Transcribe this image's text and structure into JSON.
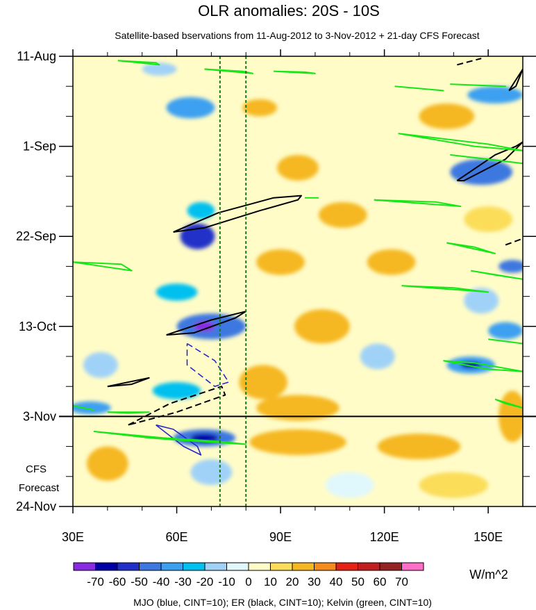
{
  "chart_data": {
    "type": "heatmap",
    "title": "OLR anomalies: 20S - 10S",
    "subtitle": "Satellite-based bservations from 11-Aug-2012 to 3-Nov-2012 + 21-day CFS Forecast",
    "x_axis": {
      "range": [
        30,
        160
      ],
      "ticks": [
        {
          "value": 30,
          "label": "30E"
        },
        {
          "value": 60,
          "label": "60E"
        },
        {
          "value": 90,
          "label": "90E"
        },
        {
          "value": 120,
          "label": "120E"
        },
        {
          "value": 150,
          "label": "150E"
        }
      ],
      "minor_step": 10
    },
    "y_axis": {
      "range_days": [
        0,
        105
      ],
      "start_date": "11-Aug-2012",
      "ticks": [
        {
          "day": 0,
          "label": "11-Aug"
        },
        {
          "day": 21,
          "label": "1-Sep"
        },
        {
          "day": 42,
          "label": "22-Sep"
        },
        {
          "day": 63,
          "label": "13-Oct"
        },
        {
          "day": 84,
          "label": "3-Nov"
        },
        {
          "day": 105,
          "label": "24-Nov"
        }
      ],
      "minor_step_days": 7
    },
    "forecast": {
      "start_day": 84,
      "label_line1": "CFS",
      "label_line2": "Forecast"
    },
    "reference_lines_lon": [
      72.5,
      80
    ],
    "colorbar": {
      "levels": [
        -70,
        -60,
        -50,
        -40,
        -30,
        -20,
        -10,
        0,
        10,
        20,
        30,
        40,
        50,
        60,
        70
      ],
      "colors": [
        "#8a2be2",
        "#0000a8",
        "#2030c8",
        "#3c78e0",
        "#3ca0f0",
        "#00c0f0",
        "#a0d2f8",
        "#e0f8fc",
        "#fffcc8",
        "#fbdd5a",
        "#f5b823",
        "#f58c1e",
        "#e62214",
        "#c31e1e",
        "#962323",
        "#ff6ec8"
      ],
      "units": "W/m^2"
    },
    "blobs": [
      {
        "lon": 55,
        "day": 3,
        "rl": 5,
        "rd": 1.5,
        "v": -15
      },
      {
        "lon": 64,
        "day": 12,
        "rl": 7,
        "rd": 2.5,
        "v": -35
      },
      {
        "lon": 84,
        "day": 12,
        "rl": 5,
        "rd": 2,
        "v": 22
      },
      {
        "lon": 138,
        "day": 14,
        "rl": 8,
        "rd": 3,
        "v": 20
      },
      {
        "lon": 152,
        "day": 9,
        "rl": 8,
        "rd": 2,
        "v": -40
      },
      {
        "lon": 148,
        "day": 27,
        "rl": 9,
        "rd": 3,
        "v": -45
      },
      {
        "lon": 95,
        "day": 26,
        "rl": 6,
        "rd": 3,
        "v": 20
      },
      {
        "lon": 67,
        "day": 36,
        "rl": 4,
        "rd": 2,
        "v": -25
      },
      {
        "lon": 66,
        "day": 42,
        "rl": 5,
        "rd": 3,
        "v": -55
      },
      {
        "lon": 108,
        "day": 37,
        "rl": 7,
        "rd": 3,
        "v": 22
      },
      {
        "lon": 150,
        "day": 38,
        "rl": 7,
        "rd": 3,
        "v": 18
      },
      {
        "lon": 90,
        "day": 48,
        "rl": 7,
        "rd": 3,
        "v": 20
      },
      {
        "lon": 122,
        "day": 48,
        "rl": 7,
        "rd": 3,
        "v": 22
      },
      {
        "lon": 157,
        "day": 49,
        "rl": 4,
        "rd": 1.5,
        "v": -50
      },
      {
        "lon": 60,
        "day": 55,
        "rl": 6,
        "rd": 2,
        "v": -30
      },
      {
        "lon": 148,
        "day": 57,
        "rl": 5,
        "rd": 3,
        "v": -20
      },
      {
        "lon": 70,
        "day": 63,
        "rl": 10,
        "rd": 3,
        "v": -50
      },
      {
        "lon": 68,
        "day": 63,
        "rl": 3,
        "rd": 1.2,
        "v": -72
      },
      {
        "lon": 102,
        "day": 63,
        "rl": 8,
        "rd": 4,
        "v": 20
      },
      {
        "lon": 155,
        "day": 64,
        "rl": 5,
        "rd": 2,
        "v": -40
      },
      {
        "lon": 118,
        "day": 70,
        "rl": 5,
        "rd": 3,
        "v": -15
      },
      {
        "lon": 145,
        "day": 72,
        "rl": 7,
        "rd": 2,
        "v": -40
      },
      {
        "lon": 145,
        "day": 72,
        "rl": 3,
        "rd": 0.8,
        "v": -70
      },
      {
        "lon": 85,
        "day": 76,
        "rl": 7,
        "rd": 4,
        "v": 25
      },
      {
        "lon": 60,
        "day": 78,
        "rl": 7,
        "rd": 2,
        "v": -30
      },
      {
        "lon": 95,
        "day": 82,
        "rl": 12,
        "rd": 3,
        "v": 20
      },
      {
        "lon": 35,
        "day": 82,
        "rl": 6,
        "rd": 1.5,
        "v": -40
      },
      {
        "lon": 157,
        "day": 84,
        "rl": 4,
        "rd": 6,
        "v": 22
      },
      {
        "lon": 38,
        "day": 72,
        "rl": 5,
        "rd": 3,
        "v": -15
      },
      {
        "lon": 68,
        "day": 89,
        "rl": 9,
        "rd": 2,
        "v": -50
      },
      {
        "lon": 68,
        "day": 89,
        "rl": 4,
        "rd": 1,
        "v": -70
      },
      {
        "lon": 95,
        "day": 90,
        "rl": 14,
        "rd": 3,
        "v": 25
      },
      {
        "lon": 130,
        "day": 91,
        "rl": 12,
        "rd": 3,
        "v": 20
      },
      {
        "lon": 40,
        "day": 95,
        "rl": 6,
        "rd": 4,
        "v": 20
      },
      {
        "lon": 70,
        "day": 97,
        "rl": 6,
        "rd": 3,
        "v": -15
      },
      {
        "lon": 140,
        "day": 100,
        "rl": 10,
        "rd": 3,
        "v": 18
      },
      {
        "lon": 110,
        "day": 100,
        "rl": 7,
        "rd": 3,
        "v": -10
      }
    ],
    "contours": {
      "er_black_solid": [
        [
          [
            59,
            41
          ],
          [
            72,
            36.5
          ],
          [
            88,
            33
          ],
          [
            96,
            32.5
          ],
          [
            95,
            33.5
          ],
          [
            84,
            36
          ],
          [
            68,
            40
          ],
          [
            59,
            41
          ]
        ],
        [
          [
            40,
            77
          ],
          [
            52,
            75
          ],
          [
            47,
            76.5
          ],
          [
            40,
            77
          ]
        ],
        [
          [
            57,
            65
          ],
          [
            70,
            61.5
          ],
          [
            80,
            59.5
          ],
          [
            77,
            61
          ],
          [
            65,
            64.5
          ],
          [
            57,
            65
          ]
        ],
        [
          [
            141,
            29
          ],
          [
            152,
            23
          ],
          [
            158,
            21
          ],
          [
            160,
            20
          ],
          [
            155,
            24
          ],
          [
            143,
            29
          ],
          [
            141,
            29
          ]
        ],
        [
          [
            156,
            8
          ],
          [
            160,
            3
          ],
          [
            158,
            7
          ],
          [
            156,
            8
          ]
        ]
      ],
      "er_black_dashed": [
        [
          [
            46,
            86
          ],
          [
            58,
            81
          ],
          [
            73,
            77
          ],
          [
            74,
            79
          ],
          [
            60,
            83
          ],
          [
            46,
            86
          ]
        ],
        [
          [
            141,
            2
          ],
          [
            148,
            0.5
          ]
        ],
        [
          [
            155,
            44
          ],
          [
            160,
            42.5
          ]
        ]
      ],
      "mjo_blue_solid": [
        [
          [
            54,
            86
          ],
          [
            62,
            91
          ],
          [
            67,
            93
          ],
          [
            66,
            91
          ],
          [
            59,
            87
          ],
          [
            54,
            86
          ]
        ]
      ],
      "mjo_blue_dashed": [
        [
          [
            63,
            67
          ],
          [
            71,
            71
          ],
          [
            75,
            76
          ],
          [
            71,
            77
          ],
          [
            63,
            72
          ],
          [
            63,
            67
          ]
        ]
      ],
      "kelvin_green": [
        [
          [
            30,
            48
          ],
          [
            47,
            50
          ],
          [
            44,
            48.5
          ],
          [
            30,
            48
          ]
        ],
        [
          [
            43,
            1
          ],
          [
            55,
            2
          ],
          [
            54,
            1.5
          ],
          [
            43,
            1
          ]
        ],
        [
          [
            68,
            3
          ],
          [
            82,
            4
          ],
          [
            79,
            3.5
          ],
          [
            68,
            3
          ]
        ],
        [
          [
            88,
            3.5
          ],
          [
            100,
            4
          ],
          [
            97,
            3.7
          ],
          [
            88,
            3.5
          ]
        ],
        [
          [
            123,
            7
          ],
          [
            137,
            8
          ],
          [
            130,
            7.5
          ],
          [
            123,
            7
          ]
        ],
        [
          [
            139,
            6.5
          ],
          [
            155,
            7
          ],
          [
            148,
            6.8
          ],
          [
            139,
            6.5
          ]
        ],
        [
          [
            124,
            18
          ],
          [
            146,
            21
          ],
          [
            160,
            22
          ],
          [
            150,
            20.5
          ],
          [
            124,
            18
          ]
        ],
        [
          [
            139,
            23
          ],
          [
            160,
            25
          ],
          [
            150,
            24
          ],
          [
            139,
            23
          ]
        ],
        [
          [
            138,
            43.5
          ],
          [
            152,
            46
          ],
          [
            146,
            44.5
          ],
          [
            138,
            43.5
          ]
        ],
        [
          [
            145,
            50
          ],
          [
            160,
            52
          ],
          [
            152,
            51
          ],
          [
            145,
            50
          ]
        ],
        [
          [
            125,
            53.5
          ],
          [
            150,
            55
          ],
          [
            140,
            54
          ],
          [
            125,
            53.5
          ]
        ],
        [
          [
            150,
            66
          ],
          [
            160,
            67
          ],
          [
            155,
            66.5
          ],
          [
            150,
            66
          ]
        ],
        [
          [
            137,
            71
          ],
          [
            150,
            73
          ],
          [
            160,
            73.5
          ],
          [
            146,
            71.5
          ],
          [
            137,
            71
          ]
        ],
        [
          [
            30,
            81.5
          ],
          [
            36,
            82.5
          ],
          [
            33,
            82
          ],
          [
            30,
            81.5
          ]
        ],
        [
          [
            40,
            83
          ],
          [
            52,
            83
          ],
          [
            46,
            83.2
          ],
          [
            40,
            83
          ]
        ],
        [
          [
            152,
            80
          ],
          [
            160,
            82
          ],
          [
            155,
            81
          ],
          [
            152,
            80
          ]
        ],
        [
          [
            97,
            33
          ],
          [
            101,
            33
          ]
        ],
        [
          [
            117,
            33.5
          ],
          [
            142,
            35
          ],
          [
            135,
            34
          ],
          [
            117,
            33.5
          ]
        ],
        [
          [
            36,
            87.5
          ],
          [
            52,
            89
          ],
          [
            60,
            89.5
          ],
          [
            70,
            90
          ],
          [
            80,
            90.5
          ],
          [
            72,
            89.8
          ],
          [
            56,
            89
          ],
          [
            36,
            87.5
          ]
        ]
      ]
    },
    "footer": "MJO (blue, CINT=10); ER (black, CINT=10); Kelvin (green, CINT=10)"
  }
}
